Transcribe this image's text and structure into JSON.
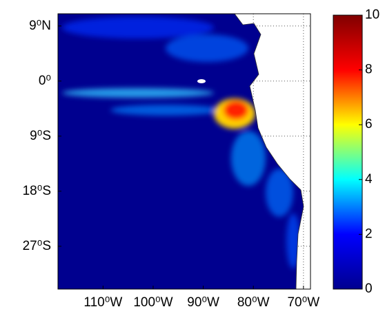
{
  "chart_data": {
    "type": "map",
    "xlim": [
      -119,
      -68.6
    ],
    "ylim": [
      -34,
      11
    ],
    "xticks": [
      {
        "value": -110,
        "label": "110⁰W"
      },
      {
        "value": -100,
        "label": "100⁰W"
      },
      {
        "value": -90,
        "label": "90⁰W"
      },
      {
        "value": -80,
        "label": "80⁰W"
      },
      {
        "value": -70,
        "label": "70⁰W"
      }
    ],
    "yticks": [
      {
        "value": 9,
        "label": "9⁰N"
      },
      {
        "value": 0,
        "label": "0⁰"
      },
      {
        "value": -9,
        "label": "9⁰S"
      },
      {
        "value": -18,
        "label": "18⁰S"
      },
      {
        "value": -27,
        "label": "27⁰S"
      }
    ],
    "colorbar": {
      "clim": [
        0,
        10
      ],
      "ticks": [
        0,
        2,
        4,
        6,
        8,
        10
      ],
      "colormap": [
        "#00008f",
        "#0000ff",
        "#00ffff",
        "#ffff00",
        "#ff0000",
        "#800000"
      ]
    },
    "grid": true
  }
}
